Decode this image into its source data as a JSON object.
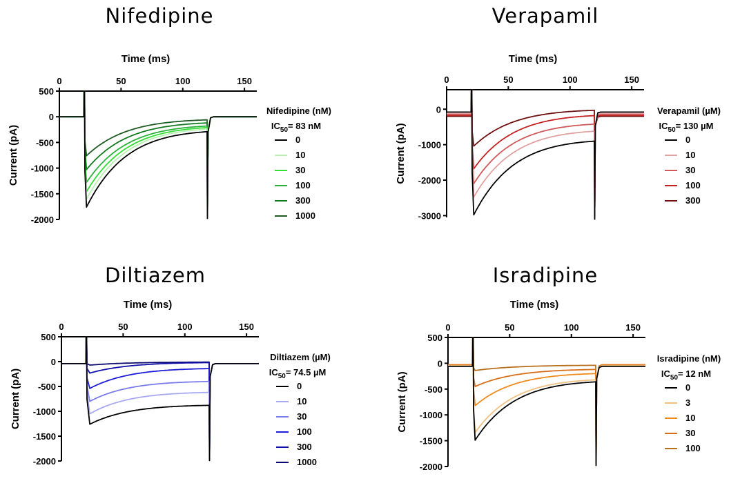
{
  "chart_data": [
    {
      "type": "line",
      "title": "Nifedipine",
      "xlabel": "Time (ms)",
      "ylabel": "Current (pA)",
      "x_ticks": [
        0,
        50,
        100,
        150
      ],
      "y_ticks": [
        500,
        0,
        -500,
        -1000,
        -1500,
        -2000
      ],
      "xlim": [
        0,
        160
      ],
      "ylim": [
        -2000,
        500
      ],
      "legend_title": "Nifedipine (nM)",
      "ic50": {
        "prefix": "IC",
        "sub": "50",
        "text": "= 83 nM"
      },
      "legend_position": "right",
      "spike": {
        "start_time": 20,
        "end_time": 120,
        "top": 500,
        "bottom": -1980
      },
      "series": [
        {
          "name": "0",
          "color": "#000000",
          "baseline": 0,
          "peak": -1760,
          "peak_time": 22,
          "end_current": -290,
          "tail": 0
        },
        {
          "name": "10",
          "color": "#b8f0b0",
          "baseline": 0,
          "peak": -1600,
          "peak_time": 22,
          "end_current": -240,
          "tail": 0
        },
        {
          "name": "30",
          "color": "#33dd33",
          "baseline": 0,
          "peak": -1460,
          "peak_time": 22,
          "end_current": -210,
          "tail": 0
        },
        {
          "name": "100",
          "color": "#2bb03a",
          "baseline": 0,
          "peak": -1280,
          "peak_time": 22,
          "end_current": -180,
          "tail": 0
        },
        {
          "name": "300",
          "color": "#127a1e",
          "baseline": 0,
          "peak": -1030,
          "peak_time": 22,
          "end_current": -120,
          "tail": 0
        },
        {
          "name": "1000",
          "color": "#1e5a22",
          "baseline": 0,
          "peak": -760,
          "peak_time": 22,
          "end_current": -60,
          "tail": 0
        }
      ]
    },
    {
      "type": "line",
      "title": "Verapamil",
      "xlabel": "Time (ms)",
      "ylabel": "Current (pA)",
      "x_ticks": [
        0,
        50,
        100,
        150
      ],
      "y_ticks": [
        0,
        -1000,
        -2000,
        -3000
      ],
      "xlim": [
        0,
        160
      ],
      "ylim": [
        -3050,
        550
      ],
      "legend_title": "Verapamil (µM)",
      "ic50": {
        "prefix": "IC",
        "sub": "50",
        "text": "= 130 µM"
      },
      "legend_position": "right",
      "spike": {
        "start_time": 20,
        "end_time": 120,
        "top": 550,
        "bottom": -3100
      },
      "series": [
        {
          "name": "0",
          "color": "#000000",
          "baseline": -80,
          "peak": -2980,
          "peak_time": 22,
          "end_current": -900,
          "tail": -80
        },
        {
          "name": "10",
          "color": "#e0a0a0",
          "baseline": -120,
          "peak": -2480,
          "peak_time": 22,
          "end_current": -620,
          "tail": -120
        },
        {
          "name": "30",
          "color": "#d05858",
          "baseline": -140,
          "peak": -2100,
          "peak_time": 22,
          "end_current": -420,
          "tail": -140
        },
        {
          "name": "100",
          "color": "#c42020",
          "baseline": -170,
          "peak": -1680,
          "peak_time": 22,
          "end_current": -180,
          "tail": -170
        },
        {
          "name": "300",
          "color": "#6e0e0e",
          "baseline": -200,
          "peak": -1040,
          "peak_time": 22,
          "end_current": -30,
          "tail": -200
        }
      ]
    },
    {
      "type": "line",
      "title": "Diltiazem",
      "xlabel": "Time (ms)",
      "ylabel": "Current (pA)",
      "x_ticks": [
        0,
        50,
        100,
        150
      ],
      "y_ticks": [
        500,
        0,
        -500,
        -1000,
        -1500,
        -2000
      ],
      "xlim": [
        0,
        160
      ],
      "ylim": [
        -2000,
        500
      ],
      "legend_title": "Diltiazem (µM)",
      "ic50": {
        "prefix": "IC",
        "sub": "50",
        "text": "= 74.5 µM"
      },
      "legend_position": "right",
      "spike": {
        "start_time": 20,
        "end_time": 120,
        "top": 500,
        "bottom": -1990
      },
      "series": [
        {
          "name": "0",
          "color": "#000000",
          "baseline": -40,
          "peak": -1260,
          "peak_time": 23,
          "end_current": -880,
          "tail": -40
        },
        {
          "name": "10",
          "color": "#a8a8f0",
          "baseline": -40,
          "peak": -1050,
          "peak_time": 23,
          "end_current": -620,
          "tail": -40
        },
        {
          "name": "30",
          "color": "#7a7aea",
          "baseline": -40,
          "peak": -800,
          "peak_time": 23,
          "end_current": -400,
          "tail": -40
        },
        {
          "name": "100",
          "color": "#1c1cd8",
          "baseline": -40,
          "peak": -540,
          "peak_time": 23,
          "end_current": -140,
          "tail": -40
        },
        {
          "name": "300",
          "color": "#1010a8",
          "baseline": -40,
          "peak": -230,
          "peak_time": 23,
          "end_current": -20,
          "tail": -40
        },
        {
          "name": "1000",
          "color": "#0a0a70",
          "baseline": -40,
          "peak": -70,
          "peak_time": 23,
          "end_current": -10,
          "tail": -40
        }
      ]
    },
    {
      "type": "line",
      "title": "Isradipine",
      "xlabel": "Time (ms)",
      "ylabel": "Current (pA)",
      "x_ticks": [
        0,
        50,
        100,
        150
      ],
      "y_ticks": [
        500,
        0,
        -500,
        -1000,
        -1500,
        -2000
      ],
      "xlim": [
        0,
        160
      ],
      "ylim": [
        -2000,
        500
      ],
      "legend_title": "Isradipine (nM)",
      "ic50": {
        "prefix": "IC",
        "sub": "50",
        "text": "= 12 nM"
      },
      "legend_position": "right",
      "spike": {
        "start_time": 20,
        "end_time": 120,
        "top": 500,
        "bottom": -1980
      },
      "series": [
        {
          "name": "0",
          "color": "#000000",
          "baseline": -60,
          "peak": -1490,
          "peak_time": 22,
          "end_current": -360,
          "tail": -60
        },
        {
          "name": "3",
          "color": "#f2c080",
          "baseline": -50,
          "peak": -1340,
          "peak_time": 22,
          "end_current": -320,
          "tail": -50
        },
        {
          "name": "10",
          "color": "#f08a1c",
          "baseline": -40,
          "peak": -820,
          "peak_time": 22,
          "end_current": -200,
          "tail": -40
        },
        {
          "name": "30",
          "color": "#d86e18",
          "baseline": -30,
          "peak": -450,
          "peak_time": 22,
          "end_current": -120,
          "tail": -30
        },
        {
          "name": "100",
          "color": "#b8701c",
          "baseline": -30,
          "peak": -140,
          "peak_time": 22,
          "end_current": -40,
          "tail": -30
        }
      ]
    }
  ]
}
